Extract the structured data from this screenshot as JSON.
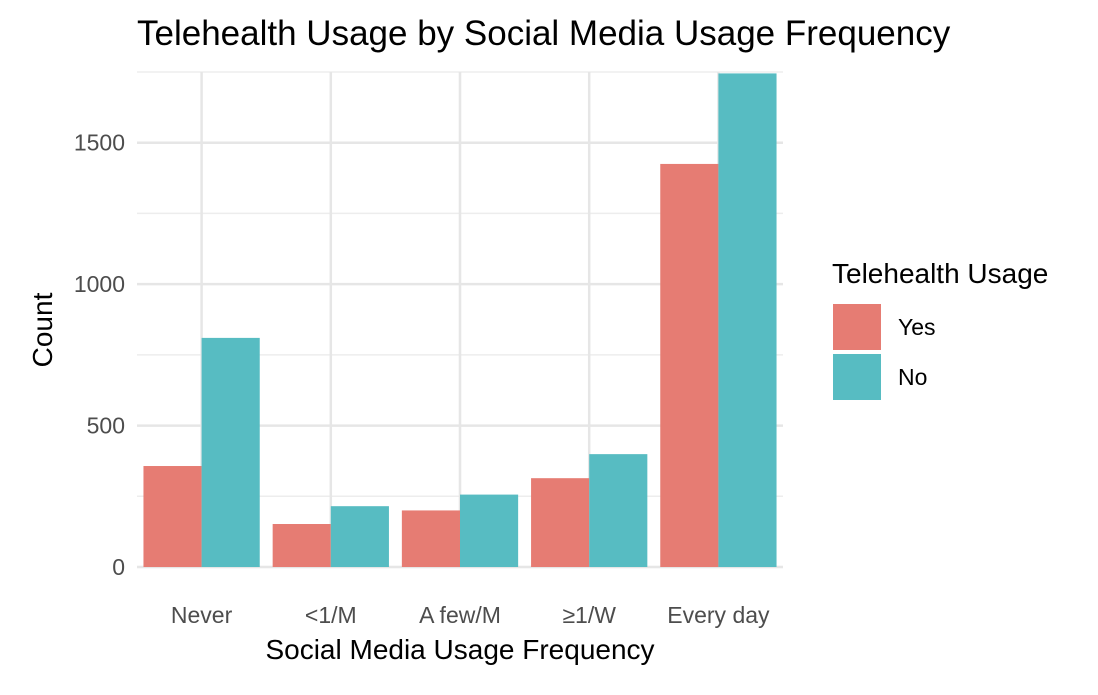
{
  "chart_data": {
    "type": "bar",
    "title": "Telehealth Usage by Social Media Usage Frequency",
    "xlabel": "Social Media Usage Frequency",
    "ylabel": "Count",
    "categories": [
      "Never",
      "<1/M",
      "A few/M",
      "≥1/W",
      "Every day"
    ],
    "series": [
      {
        "name": "Yes",
        "color": "#E67C73",
        "values": [
          357,
          152,
          200,
          314,
          1425
        ]
      },
      {
        "name": "No",
        "color": "#57BCC2",
        "values": [
          810,
          215,
          256,
          399,
          1745
        ]
      }
    ],
    "ylim": [
      0,
      1750
    ],
    "yticks": [
      0,
      500,
      1000,
      1500
    ],
    "grid": true,
    "legend": {
      "title": "Telehealth Usage",
      "position": "right"
    }
  }
}
